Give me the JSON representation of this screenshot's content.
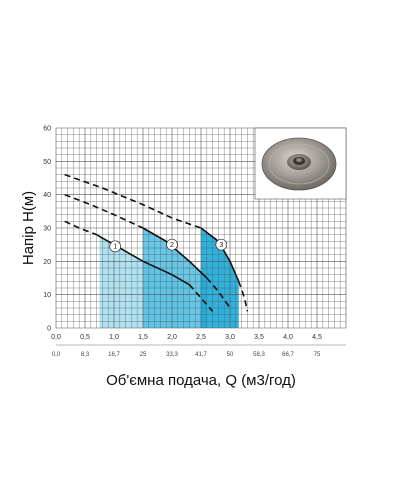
{
  "chart_data": {
    "type": "line",
    "xlabel": "Об'ємна подача, Q (м3/год)",
    "ylabel": "Напір Н(м)",
    "xlim": [
      0,
      5.0
    ],
    "ylim": [
      0,
      60
    ],
    "grid": true,
    "x_ticks": [
      "0,0",
      "0,5",
      "1,0",
      "1,5",
      "2,0",
      "2,5",
      "3,0",
      "3,5",
      "4,0",
      "4,5"
    ],
    "x_tick_values": [
      0,
      0.5,
      1.0,
      1.5,
      2.0,
      2.5,
      3.0,
      3.5,
      4.0,
      4.5
    ],
    "q_ticks": [
      "0,0",
      "8,3",
      "16,7",
      "25",
      "33,3",
      "41,7",
      "50",
      "58,3",
      "66,7",
      "75"
    ],
    "y_ticks": [
      "0",
      "10",
      "20",
      "30",
      "40",
      "50",
      "60"
    ],
    "y_tick_values": [
      0,
      10,
      20,
      30,
      40,
      50,
      60
    ],
    "colors": {
      "grid": "#555555",
      "curve": "#111111",
      "band_1": "#a9dff1",
      "band_2": "#55c1e4",
      "band_3": "#1aa8d8"
    },
    "series": [
      {
        "label": "1",
        "dashed_left": {
          "x": [
            0.15,
            0.4,
            0.7
          ],
          "y": [
            32,
            30,
            28
          ]
        },
        "solid": {
          "x": [
            0.7,
            1.0,
            1.5,
            2.0,
            2.3
          ],
          "y": [
            28,
            25,
            20,
            16,
            13
          ]
        },
        "dashed_right": {
          "x": [
            2.3,
            2.5,
            2.7
          ],
          "y": [
            13,
            9,
            5
          ]
        },
        "marker": {
          "x": 1.02,
          "y": 24.5
        },
        "band": [
          0.75,
          2.32
        ]
      },
      {
        "label": "2",
        "dashed_left": {
          "x": [
            0.15,
            0.6,
            1.0,
            1.5
          ],
          "y": [
            40,
            37,
            34,
            30
          ]
        },
        "solid": {
          "x": [
            1.5,
            1.9,
            2.3,
            2.6
          ],
          "y": [
            30,
            26,
            20,
            15
          ]
        },
        "dashed_right": {
          "x": [
            2.6,
            2.8,
            3.0
          ],
          "y": [
            15,
            11,
            6
          ]
        },
        "marker": {
          "x": 2.0,
          "y": 25
        },
        "band": [
          1.5,
          2.6
        ]
      },
      {
        "label": "3",
        "dashed_left": {
          "x": [
            0.15,
            0.8,
            1.5,
            2.0,
            2.5
          ],
          "y": [
            46,
            42,
            37,
            33,
            30
          ]
        },
        "solid": {
          "x": [
            2.5,
            2.8,
            3.0,
            3.15
          ],
          "y": [
            30,
            26,
            20,
            14
          ]
        },
        "dashed_right": {
          "x": [
            3.15,
            3.25,
            3.3
          ],
          "y": [
            14,
            9,
            5
          ]
        },
        "marker": {
          "x": 2.85,
          "y": 25
        },
        "band": [
          2.5,
          3.15
        ]
      }
    ],
    "inset": {
      "icon": "impeller-photo"
    }
  }
}
